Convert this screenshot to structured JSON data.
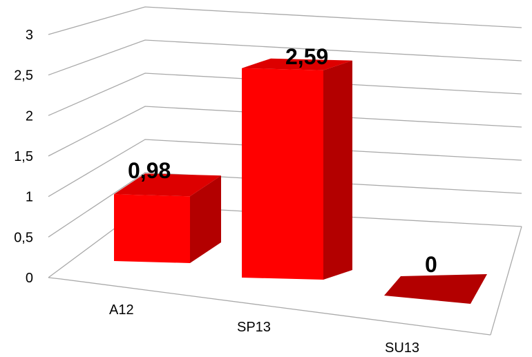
{
  "chart_data": {
    "type": "bar",
    "style": "3d-column",
    "categories": [
      "A12",
      "SP13",
      "SU13"
    ],
    "values": [
      0.98,
      2.59,
      0
    ],
    "data_labels": [
      "0,98",
      "2,59",
      "0"
    ],
    "y_ticks": [
      "0",
      "0,5",
      "1",
      "1,5",
      "2",
      "2,5",
      "3"
    ],
    "ylim": [
      0,
      3
    ],
    "grid": true,
    "legend": "none",
    "title": "",
    "xlabel": "",
    "ylabel": "",
    "colors": {
      "front": "#ff0000",
      "top": "#dd0000",
      "side": "#b30000",
      "grid": "#a9a9a9"
    }
  }
}
